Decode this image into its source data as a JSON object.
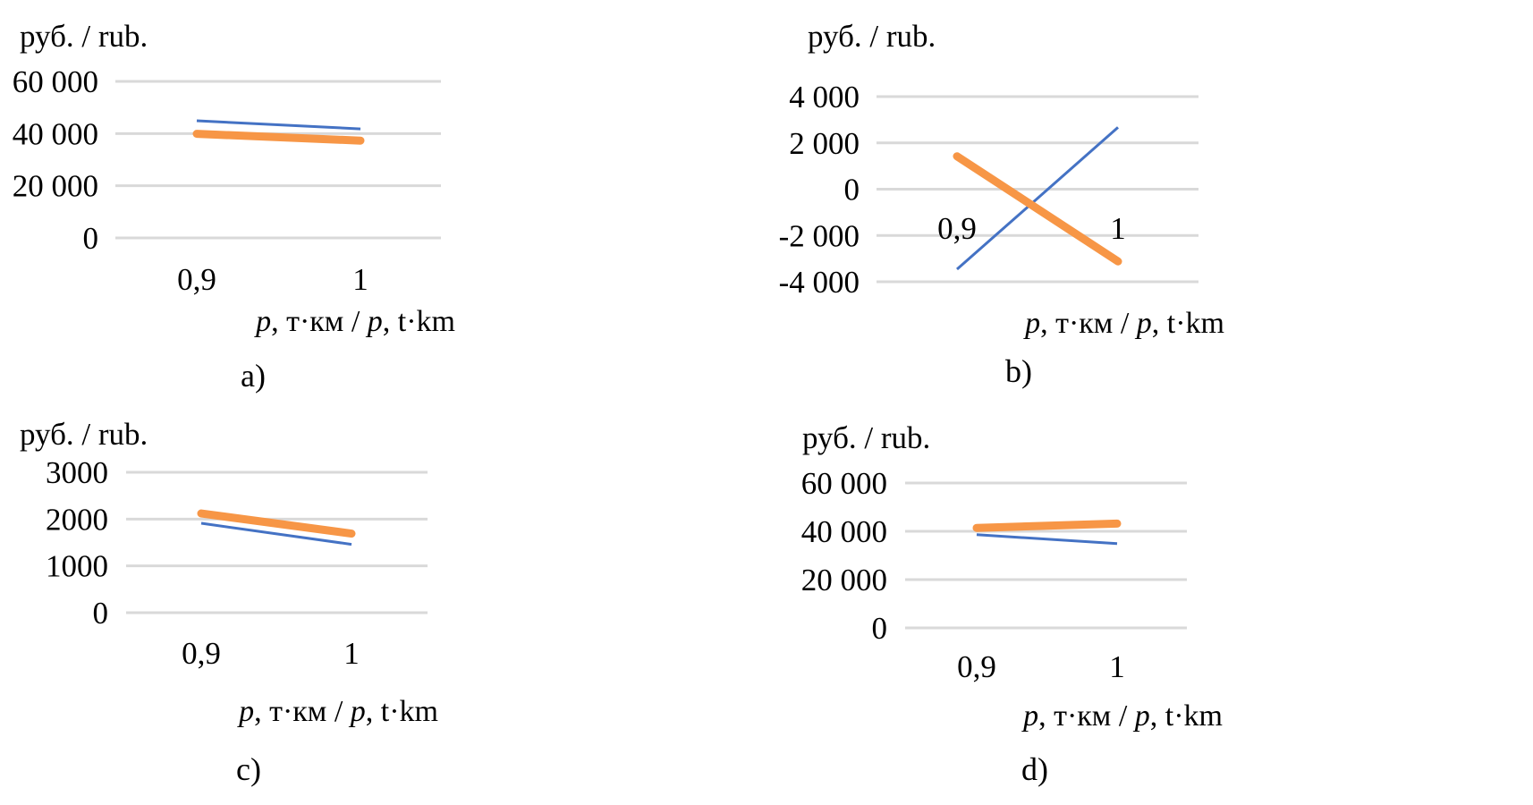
{
  "chart_data": [
    {
      "type": "line",
      "panel_label": "a)",
      "ylabel": "руб. / rub.",
      "xlabel": [
        "p",
        ", т·км / ",
        "p",
        ", t·km"
      ],
      "categories": [
        "0,9",
        "1"
      ],
      "x": [
        0.9,
        1
      ],
      "ylim": [
        0,
        60000
      ],
      "yticks": [
        0,
        20000,
        40000,
        60000
      ],
      "ytick_labels": [
        "0",
        "20 000",
        "40 000",
        "60 000"
      ],
      "grid": true,
      "series": [
        {
          "color": "#4472C4",
          "values": [
            44900,
            41800
          ]
        },
        {
          "color": "#F79646",
          "values": [
            39900,
            37300
          ]
        }
      ]
    },
    {
      "type": "line",
      "panel_label": "b)",
      "ylabel": "руб. / rub.",
      "xlabel": [
        "p",
        ", т·км / ",
        "p",
        ", t·km"
      ],
      "categories": [
        "0,9",
        "1"
      ],
      "x": [
        0.9,
        1
      ],
      "ylim": [
        -4000,
        4000
      ],
      "yticks": [
        -4000,
        -2000,
        0,
        2000,
        4000
      ],
      "ytick_labels": [
        "-4 000",
        "-2 000",
        "0",
        "2 000",
        "4 000"
      ],
      "grid": true,
      "series": [
        {
          "color": "#4472C4",
          "values": [
            -3460,
            2670
          ]
        },
        {
          "color": "#F79646",
          "values": [
            1420,
            -3120
          ]
        }
      ]
    },
    {
      "type": "line",
      "panel_label": "c)",
      "ylabel": "руб. / rub.",
      "xlabel": [
        "p",
        ", т·км / ",
        "p",
        ", t·km"
      ],
      "categories": [
        "0,9",
        "1"
      ],
      "x": [
        0.9,
        1
      ],
      "ylim": [
        0,
        3000
      ],
      "yticks": [
        0,
        1000,
        2000,
        3000
      ],
      "ytick_labels": [
        "0",
        "1000",
        "2000",
        "3000"
      ],
      "grid": true,
      "series": [
        {
          "color": "#4472C4",
          "values": [
            1910,
            1460
          ]
        },
        {
          "color": "#F79646",
          "values": [
            2120,
            1690
          ]
        }
      ]
    },
    {
      "type": "line",
      "panel_label": "d)",
      "ylabel": "руб. / rub.",
      "xlabel": [
        "p",
        ", т·км / ",
        "p",
        ", t·km"
      ],
      "categories": [
        "0,9",
        "1"
      ],
      "x": [
        0.9,
        1
      ],
      "ylim": [
        0,
        60000
      ],
      "yticks": [
        0,
        20000,
        40000,
        60000
      ],
      "ytick_labels": [
        "0",
        "20 000",
        "40 000",
        "60 000"
      ],
      "grid": true,
      "series": [
        {
          "color": "#4472C4",
          "values": [
            38600,
            34900
          ]
        },
        {
          "color": "#F79646",
          "values": [
            41400,
            43200
          ]
        }
      ]
    }
  ]
}
